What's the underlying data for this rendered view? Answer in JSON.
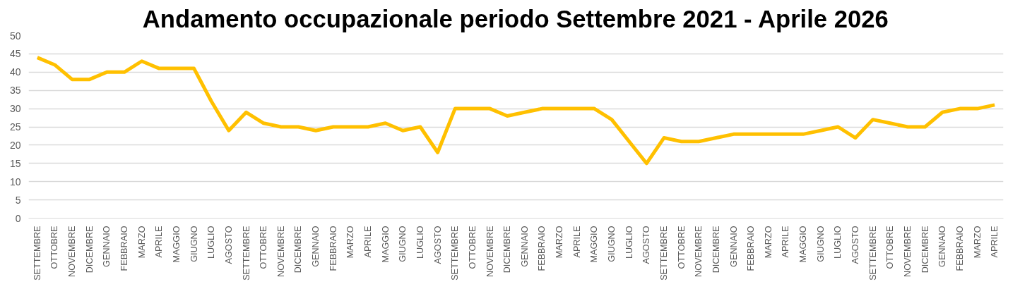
{
  "chart_data": {
    "type": "line",
    "title": "Andamento occupazionale periodo Settembre 2021 - Aprile 2026",
    "categories": [
      "SETTEMBRE",
      "OTTOBRE",
      "NOVEMBRE",
      "DICEMBRE",
      "GENNAIO",
      "FEBBRAIO",
      "MARZO",
      "APRILE",
      "MAGGIO",
      "GIUGNO",
      "LUGLIO",
      "AGOSTO",
      "SETTEMBRE",
      "OTTOBRE",
      "NOVEMBRE",
      "DICEMBRE",
      "GENNAIO",
      "FEBBRAIO",
      "MARZO",
      "APRILE",
      "MAGGIO",
      "GIUGNO",
      "LUGLIO",
      "AGOSTO",
      "SETTEMBRE",
      "OTTOBRE",
      "NOVEMBRE",
      "DICEMBRE",
      "GENNAIO",
      "FEBBRAIO",
      "MARZO",
      "APRILE",
      "MAGGIO",
      "GIUGNO",
      "LUGLIO",
      "AGOSTO",
      "SETTEMBRE",
      "OTTOBRE",
      "NOVEMBRE",
      "DICEMBRE",
      "GENNAIO",
      "FEBBRAIO",
      "MARZO",
      "APRILE",
      "MAGGIO",
      "GIUGNO",
      "LUGLIO",
      "AGOSTO",
      "SETTEMBRE",
      "OTTOBRE",
      "NOVEMBRE",
      "DICEMBRE",
      "GENNAIO",
      "FEBBRAIO",
      "MARZO",
      "APRILE"
    ],
    "series": [
      {
        "color": "#ffc000",
        "values": [
          44,
          42,
          38,
          38,
          40,
          40,
          43,
          41,
          41,
          41,
          32,
          24,
          29,
          26,
          25,
          25,
          24,
          25,
          25,
          25,
          26,
          24,
          25,
          18,
          30,
          30,
          30,
          28,
          29,
          30,
          30,
          30,
          30,
          27,
          21,
          15,
          22,
          21,
          21,
          22,
          23,
          23,
          23,
          23,
          23,
          24,
          25,
          22,
          27,
          26,
          25,
          25,
          29,
          30,
          30,
          31
        ]
      }
    ],
    "ylim": [
      0,
      50
    ],
    "yticks": [
      0,
      5,
      10,
      15,
      20,
      25,
      30,
      35,
      40,
      45,
      50
    ],
    "grid": "y",
    "marker": "none",
    "line_style": "solid"
  }
}
